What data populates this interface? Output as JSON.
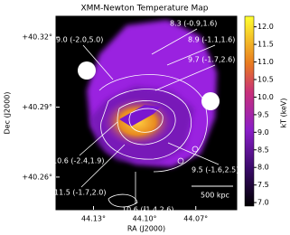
{
  "chart_data": {
    "type": "image",
    "title": "XMM-Newton Temperature Map",
    "xlabel": "RA (J2000)",
    "ylabel": "Dec (J2000)",
    "xlim": [
      44.152,
      44.046
    ],
    "xticks": [
      {
        "value": 44.13,
        "label": "44.13°"
      },
      {
        "value": 44.1,
        "label": "44.10°"
      },
      {
        "value": 44.07,
        "label": "44.07°"
      }
    ],
    "ylim": [
      40.246,
      40.329
    ],
    "yticks": [
      {
        "value": 40.26,
        "label": "+40.26°"
      },
      {
        "value": 40.29,
        "label": "+40.29°"
      },
      {
        "value": 40.32,
        "label": "+40.32°"
      }
    ],
    "colorbar": {
      "label": "kT (keV)",
      "lim": [
        6.9,
        12.3
      ],
      "ticks": [
        {
          "value": 7,
          "label": "7.0"
        },
        {
          "value": 7.5,
          "label": "7.5"
        },
        {
          "value": 8,
          "label": "8.0"
        },
        {
          "value": 8.5,
          "label": "8.5"
        },
        {
          "value": 9,
          "label": "9.0"
        },
        {
          "value": 9.5,
          "label": "9.5"
        },
        {
          "value": 10,
          "label": "10.0"
        },
        {
          "value": 10.5,
          "label": "10.5"
        },
        {
          "value": 11,
          "label": "11.0"
        },
        {
          "value": 11.5,
          "label": "11.5"
        },
        {
          "value": 12,
          "label": "12.0"
        }
      ]
    },
    "annotations": [
      "8.3 (-0.9,1.6)",
      "9.0 (-2.0,5.0)",
      "8.9 (-1.1,1.6)",
      "9.7 (-1.7,2.6)",
      "10.6 (-2.4,1.9)",
      "11.5 (-1.7,2.0)",
      "9.5 (-1.6,2.5)",
      "10.6 (-1.4,2.6)"
    ],
    "scale_bar": "500 kpc"
  }
}
